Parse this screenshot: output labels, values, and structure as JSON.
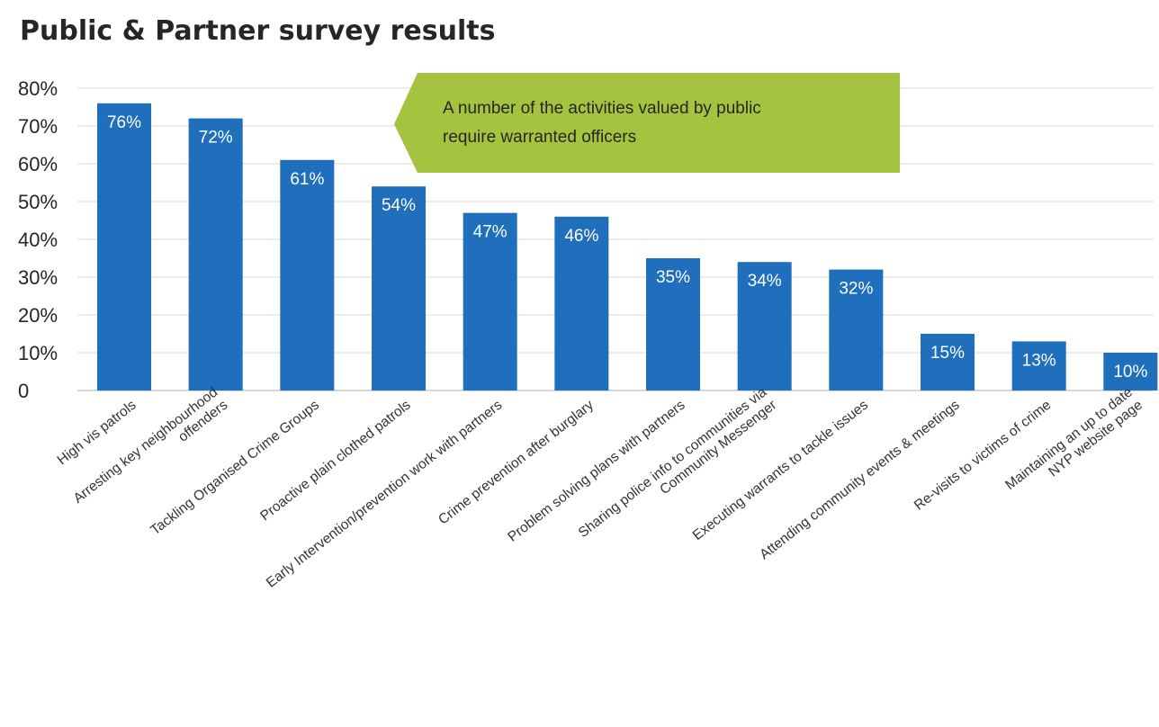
{
  "chart_data": {
    "type": "bar",
    "title": "Public & Partner survey results",
    "categories": [
      [
        "High vis patrols"
      ],
      [
        "Arresting key neighbourhood",
        "offenders"
      ],
      [
        "Tackling Organised Crime Groups"
      ],
      [
        "Proactive plain clothed patrols"
      ],
      [
        "Early Intervention/prevention work with partners"
      ],
      [
        "Crime prevention after burglary"
      ],
      [
        "Problem solving plans with partners"
      ],
      [
        "Sharing police info to communities via",
        "Community Messenger"
      ],
      [
        "Executing warrants to tackle issues"
      ],
      [
        "Attending community events & meetings"
      ],
      [
        "Re-visits to victims of crime"
      ],
      [
        "Maintaining an up to date",
        "NYP website page"
      ]
    ],
    "values": [
      76,
      72,
      61,
      54,
      47,
      46,
      35,
      34,
      32,
      15,
      13,
      10
    ],
    "data_labels": [
      "76%",
      "72%",
      "61%",
      "54%",
      "47%",
      "46%",
      "35%",
      "34%",
      "32%",
      "15%",
      "13%",
      "10%"
    ],
    "ylim": [
      0,
      80
    ],
    "y_ticks": [
      "0",
      "10%",
      "20%",
      "30%",
      "40%",
      "50%",
      "60%",
      "70%",
      "80%"
    ],
    "grid": true,
    "legend": "none",
    "bar_color": "#1f6fbd",
    "callout": {
      "lines": [
        "A number of the activities valued by public",
        "require warranted officers"
      ],
      "color": "#a4c43f"
    }
  }
}
